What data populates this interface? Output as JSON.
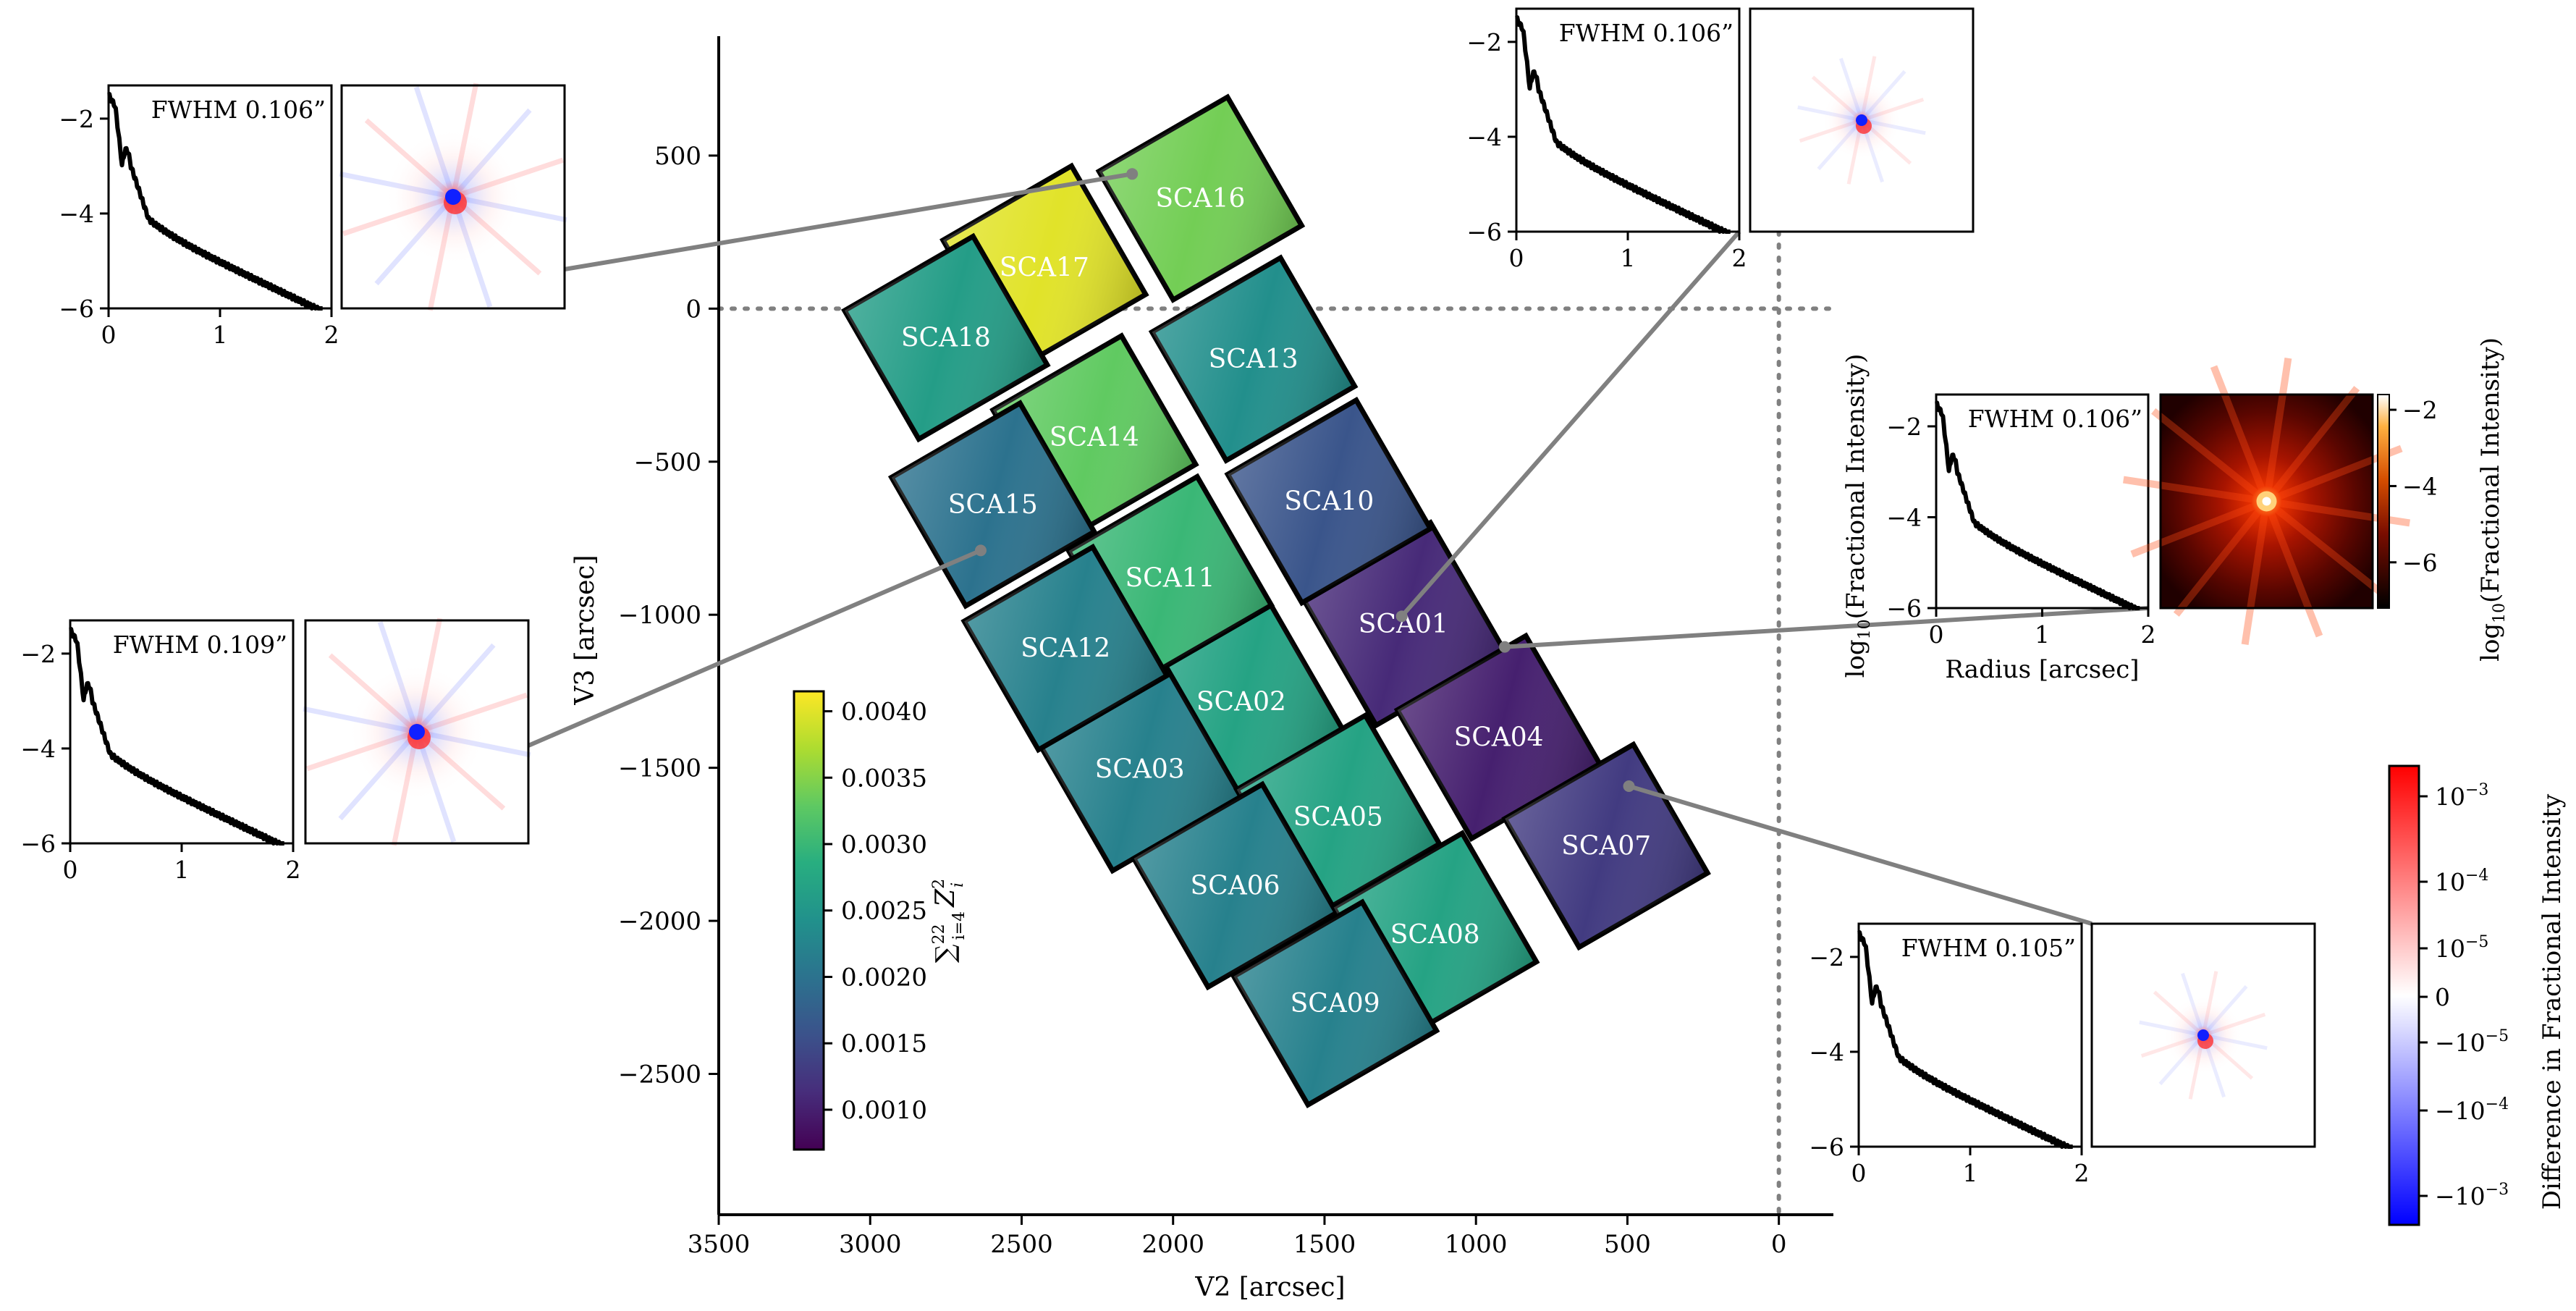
{
  "chart_data": {
    "type": "heatmap",
    "main": {
      "xlabel": "V2 [arcsec]",
      "ylabel": "V3 [arcsec]",
      "xlim": [
        3500,
        -180
      ],
      "ylim": [
        -2960,
        890
      ],
      "xticks": [
        3500,
        3000,
        2500,
        2000,
        1500,
        1000,
        500,
        0
      ],
      "xtick_labels": [
        "3500",
        "3000",
        "2500",
        "2000",
        "1500",
        "1000",
        "500",
        "0"
      ],
      "yticks": [
        500,
        0,
        -500,
        -1000,
        -1500,
        -2000,
        -2500
      ],
      "ytick_labels": [
        "500",
        "0",
        "−500",
        "−1000",
        "−1500",
        "−2000",
        "−2500"
      ],
      "reference_lines": {
        "v2": 0,
        "v3": 0,
        "style": "dotted gray"
      },
      "detectors": [
        {
          "name": "SCA01",
          "center": [
            1240,
            -1030
          ],
          "value": 0.0011
        },
        {
          "name": "SCA02",
          "center": [
            1775,
            -1285
          ],
          "value": 0.0027
        },
        {
          "name": "SCA03",
          "center": [
            2110,
            -1505
          ],
          "value": 0.0022
        },
        {
          "name": "SCA04",
          "center": [
            925,
            -1400
          ],
          "value": 0.001
        },
        {
          "name": "SCA05",
          "center": [
            1455,
            -1660
          ],
          "value": 0.0027
        },
        {
          "name": "SCA06",
          "center": [
            1795,
            -1885
          ],
          "value": 0.0022
        },
        {
          "name": "SCA07",
          "center": [
            570,
            -1755
          ],
          "value": 0.0013
        },
        {
          "name": "SCA08",
          "center": [
            1135,
            -2045
          ],
          "value": 0.0027
        },
        {
          "name": "SCA09",
          "center": [
            1465,
            -2270
          ],
          "value": 0.0022
        },
        {
          "name": "SCA10",
          "center": [
            1485,
            -630
          ],
          "value": 0.0016
        },
        {
          "name": "SCA11",
          "center": [
            2010,
            -880
          ],
          "value": 0.003
        },
        {
          "name": "SCA12",
          "center": [
            2355,
            -1110
          ],
          "value": 0.0022
        },
        {
          "name": "SCA13",
          "center": [
            1735,
            -165
          ],
          "value": 0.0024
        },
        {
          "name": "SCA14",
          "center": [
            2260,
            -420
          ],
          "value": 0.0033
        },
        {
          "name": "SCA15",
          "center": [
            2595,
            -640
          ],
          "value": 0.002
        },
        {
          "name": "SCA16",
          "center": [
            1910,
            360
          ],
          "value": 0.0034
        },
        {
          "name": "SCA17",
          "center": [
            2425,
            135
          ],
          "value": 0.004
        },
        {
          "name": "SCA18",
          "center": [
            2750,
            -95
          ],
          "value": 0.0026
        }
      ]
    },
    "colorbar_main": {
      "label": "∑_{i=4}^{22} Z_i^2",
      "range": [
        0.0007,
        0.00415
      ],
      "colormap": "viridis",
      "ticks": [
        0.004,
        0.0035,
        0.003,
        0.0025,
        0.002,
        0.0015,
        0.001
      ],
      "tick_labels": [
        "0.0040",
        "0.0035",
        "0.0030",
        "0.0025",
        "0.0020",
        "0.0015",
        "0.0010"
      ]
    },
    "insets": [
      {
        "fwhm": "FWHM 0.106”",
        "image": "difference",
        "anchor": [
          2135,
          440
        ]
      },
      {
        "fwhm": "FWHM 0.109”",
        "image": "difference",
        "anchor": [
          2635,
          -790
        ]
      },
      {
        "fwhm": "FWHM 0.106”",
        "image": "difference",
        "anchor": [
          1245,
          -1005
        ]
      },
      {
        "fwhm": "FWHM 0.106”",
        "image": "psf",
        "anchor": [
          905,
          -1105
        ]
      },
      {
        "fwhm": "FWHM 0.105”",
        "image": "difference",
        "anchor": [
          495,
          -1560
        ]
      }
    ],
    "inset_axes": {
      "xticks": [
        0,
        1,
        2
      ],
      "xtick_labels": [
        "0",
        "1",
        "2"
      ],
      "yticks": [
        -2,
        -4,
        -6
      ],
      "ytick_labels": [
        "−2",
        "−4",
        "−6"
      ],
      "xlabel": "Radius [arcsec]",
      "ylabel": "log10(Fractional Intensity)"
    },
    "colorbar_psf": {
      "label": "log10(Fractional Intensity)",
      "colormap": "gist_heat",
      "ticks": [
        -2,
        -4,
        -6
      ],
      "tick_labels": [
        "−2",
        "−4",
        "−6"
      ]
    },
    "colorbar_diff": {
      "label": "Difference in Fractional Intensity",
      "colormap": "bwr (symlog)",
      "tick_labels": [
        "10−3",
        "10−4",
        "10−5",
        "0",
        "−10−5",
        "−10−4",
        "−10−3"
      ]
    }
  }
}
